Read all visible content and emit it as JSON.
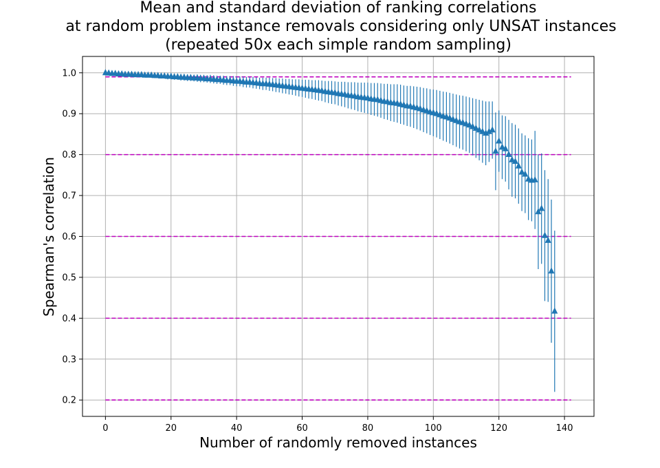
{
  "chart_data": {
    "type": "scatter",
    "title_lines": [
      "Mean and standard deviation of ranking correlations",
      "at random problem instance removals considering only UNSAT instances",
      "(repeated 50x each simple random sampling)"
    ],
    "xlabel": "Number of randomly removed instances",
    "ylabel": "Spearman's correlation",
    "xlim": [
      -7,
      149
    ],
    "ylim": [
      0.16,
      1.04
    ],
    "xticks": [
      0,
      20,
      40,
      60,
      80,
      100,
      120,
      140
    ],
    "yticks": [
      0.2,
      0.3,
      0.4,
      0.5,
      0.6,
      0.7,
      0.8,
      0.9,
      1.0
    ],
    "ytick_labels": [
      "0.2",
      "0.3",
      "0.4",
      "0.5",
      "0.6",
      "0.7",
      "0.8",
      "0.9",
      "1.0"
    ],
    "grid": true,
    "reference_lines": {
      "y": [
        0.99,
        0.8,
        0.6,
        0.4,
        0.2
      ],
      "x_range": [
        0,
        142
      ],
      "color": "#bf00bf",
      "style": "dashed"
    },
    "series": [
      {
        "marker": "triangle",
        "color": "#1f77b4",
        "x": [
          0,
          1,
          2,
          3,
          4,
          5,
          6,
          7,
          8,
          9,
          10,
          11,
          12,
          13,
          14,
          15,
          16,
          17,
          18,
          19,
          20,
          21,
          22,
          23,
          24,
          25,
          26,
          27,
          28,
          29,
          30,
          31,
          32,
          33,
          34,
          35,
          36,
          37,
          38,
          39,
          40,
          41,
          42,
          43,
          44,
          45,
          46,
          47,
          48,
          49,
          50,
          51,
          52,
          53,
          54,
          55,
          56,
          57,
          58,
          59,
          60,
          61,
          62,
          63,
          64,
          65,
          66,
          67,
          68,
          69,
          70,
          71,
          72,
          73,
          74,
          75,
          76,
          77,
          78,
          79,
          80,
          81,
          82,
          83,
          84,
          85,
          86,
          87,
          88,
          89,
          90,
          91,
          92,
          93,
          94,
          95,
          96,
          97,
          98,
          99,
          100,
          101,
          102,
          103,
          104,
          105,
          106,
          107,
          108,
          109,
          110,
          111,
          112,
          113,
          114,
          115,
          116,
          117,
          118,
          119,
          120,
          121,
          122,
          123,
          124,
          125,
          126,
          127,
          128,
          129,
          130,
          131,
          132,
          133,
          134,
          135,
          136,
          137
        ],
        "y": [
          1.0,
          0.999,
          0.998,
          0.998,
          0.997,
          0.997,
          0.996,
          0.996,
          0.996,
          0.995,
          0.995,
          0.995,
          0.994,
          0.994,
          0.994,
          0.993,
          0.993,
          0.992,
          0.992,
          0.991,
          0.991,
          0.99,
          0.99,
          0.989,
          0.989,
          0.988,
          0.988,
          0.987,
          0.987,
          0.986,
          0.986,
          0.985,
          0.985,
          0.984,
          0.983,
          0.983,
          0.982,
          0.981,
          0.981,
          0.98,
          0.979,
          0.979,
          0.978,
          0.977,
          0.977,
          0.976,
          0.975,
          0.974,
          0.973,
          0.973,
          0.972,
          0.971,
          0.97,
          0.969,
          0.968,
          0.967,
          0.966,
          0.965,
          0.964,
          0.963,
          0.962,
          0.961,
          0.96,
          0.959,
          0.958,
          0.957,
          0.956,
          0.954,
          0.953,
          0.952,
          0.951,
          0.949,
          0.948,
          0.947,
          0.945,
          0.944,
          0.943,
          0.941,
          0.94,
          0.939,
          0.938,
          0.936,
          0.935,
          0.934,
          0.932,
          0.93,
          0.929,
          0.927,
          0.926,
          0.925,
          0.923,
          0.921,
          0.919,
          0.918,
          0.916,
          0.914,
          0.912,
          0.909,
          0.907,
          0.904,
          0.902,
          0.9,
          0.897,
          0.894,
          0.892,
          0.889,
          0.886,
          0.883,
          0.88,
          0.878,
          0.875,
          0.872,
          0.868,
          0.864,
          0.86,
          0.856,
          0.852,
          0.856,
          0.86,
          0.808,
          0.833,
          0.818,
          0.814,
          0.8,
          0.787,
          0.783,
          0.772,
          0.757,
          0.752,
          0.74,
          0.737,
          0.738,
          0.66,
          0.668,
          0.602,
          0.59,
          0.515,
          0.417
        ],
        "err": [
          0.0,
          0.002,
          0.002,
          0.003,
          0.003,
          0.003,
          0.004,
          0.004,
          0.004,
          0.004,
          0.005,
          0.005,
          0.005,
          0.005,
          0.006,
          0.006,
          0.006,
          0.006,
          0.006,
          0.007,
          0.007,
          0.007,
          0.007,
          0.008,
          0.008,
          0.008,
          0.008,
          0.008,
          0.009,
          0.009,
          0.009,
          0.009,
          0.01,
          0.01,
          0.01,
          0.01,
          0.011,
          0.011,
          0.011,
          0.012,
          0.012,
          0.012,
          0.013,
          0.013,
          0.013,
          0.014,
          0.014,
          0.014,
          0.015,
          0.015,
          0.016,
          0.016,
          0.017,
          0.017,
          0.018,
          0.018,
          0.019,
          0.019,
          0.02,
          0.021,
          0.021,
          0.022,
          0.023,
          0.023,
          0.024,
          0.025,
          0.025,
          0.026,
          0.027,
          0.028,
          0.028,
          0.029,
          0.03,
          0.031,
          0.032,
          0.033,
          0.034,
          0.035,
          0.036,
          0.037,
          0.038,
          0.039,
          0.04,
          0.041,
          0.042,
          0.043,
          0.044,
          0.045,
          0.046,
          0.047,
          0.048,
          0.048,
          0.049,
          0.05,
          0.051,
          0.052,
          0.053,
          0.054,
          0.055,
          0.056,
          0.057,
          0.058,
          0.059,
          0.06,
          0.061,
          0.062,
          0.063,
          0.064,
          0.065,
          0.066,
          0.067,
          0.068,
          0.07,
          0.072,
          0.074,
          0.076,
          0.078,
          0.074,
          0.07,
          0.095,
          0.075,
          0.078,
          0.08,
          0.085,
          0.09,
          0.09,
          0.092,
          0.095,
          0.095,
          0.1,
          0.1,
          0.12,
          0.14,
          0.135,
          0.16,
          0.15,
          0.175,
          0.197
        ]
      }
    ]
  }
}
